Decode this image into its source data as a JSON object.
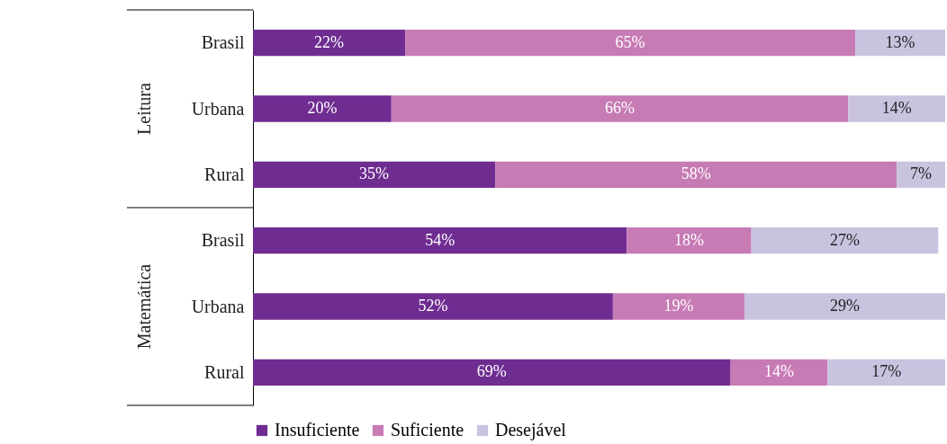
{
  "chart_data": {
    "type": "bar",
    "orientation": "horizontal",
    "stacked": true,
    "categories": [
      "Brasil",
      "Urbana",
      "Rural",
      "Brasil",
      "Urbana",
      "Rural"
    ],
    "annotations": [
      "Leitura",
      "Matemática"
    ],
    "xlim": [
      0,
      100
    ],
    "tick_labels": "y",
    "legend": "bottom",
    "grid": false,
    "series": [
      {
        "name": "Insuficiente",
        "color": "#6f2c91",
        "values": [
          22,
          20,
          35,
          54,
          52,
          69
        ],
        "value_labels": [
          "22%",
          "20%",
          "35%",
          "54%",
          "52%",
          "69%"
        ]
      },
      {
        "name": "Suficiente",
        "color": "#c77bb5",
        "values": [
          65,
          66,
          58,
          18,
          19,
          14
        ],
        "value_labels": [
          "65%",
          "66%",
          "58%",
          "18%",
          "19%",
          "14%"
        ]
      },
      {
        "name": "Desejável",
        "color": "#c9c3e0",
        "values": [
          13,
          14,
          7,
          27,
          29,
          17
        ],
        "value_labels": [
          "13%",
          "14%",
          "7%",
          "27%",
          "29%",
          "17%"
        ]
      }
    ]
  }
}
